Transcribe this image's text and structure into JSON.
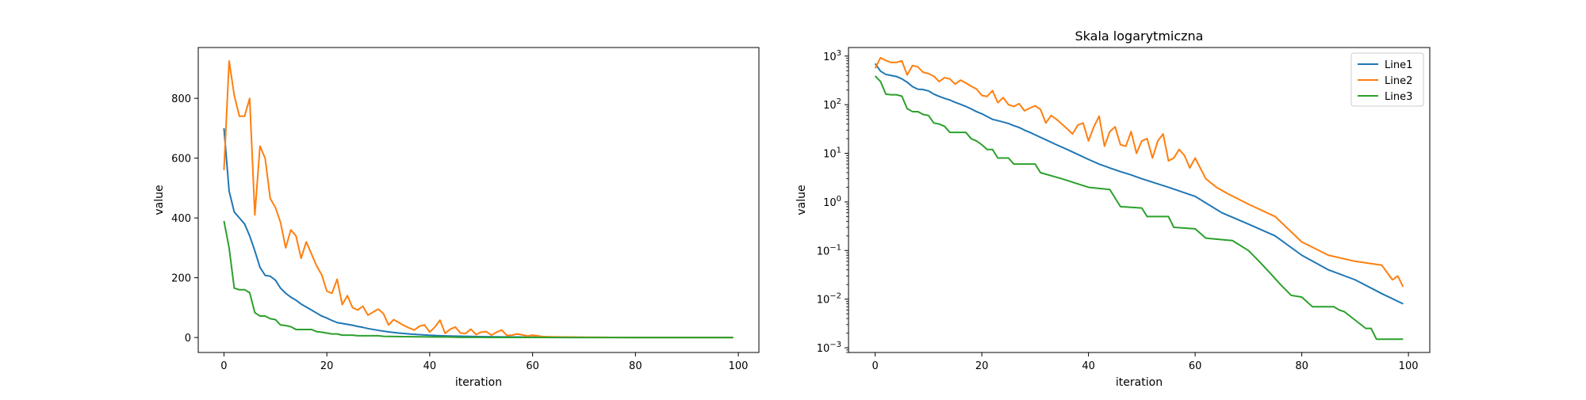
{
  "chart_data": [
    {
      "type": "line",
      "title": "",
      "xlabel": "iteration",
      "ylabel": "value",
      "yscale": "linear",
      "xlim": [
        -5,
        104
      ],
      "ylim": [
        -50,
        970
      ],
      "xticks": [
        0,
        20,
        40,
        60,
        80,
        100
      ],
      "yticks": [
        0,
        200,
        400,
        600,
        800
      ],
      "legend": null,
      "grid": false,
      "series": [
        {
          "color": "#1f77b4",
          "points": [
            [
              0,
              700
            ],
            [
              1,
              490
            ],
            [
              2,
              420
            ],
            [
              3,
              400
            ],
            [
              4,
              380
            ],
            [
              5,
              340
            ],
            [
              6,
              290
            ],
            [
              7,
              235
            ],
            [
              8,
              208
            ],
            [
              9,
              205
            ],
            [
              10,
              192
            ],
            [
              11,
              165
            ],
            [
              12,
              148
            ],
            [
              13,
              135
            ],
            [
              14,
              125
            ],
            [
              15,
              112
            ],
            [
              16,
              102
            ],
            [
              17,
              92
            ],
            [
              18,
              82
            ],
            [
              19,
              72
            ],
            [
              20,
              65
            ],
            [
              21,
              57
            ],
            [
              22,
              50
            ],
            [
              23,
              47
            ],
            [
              24,
              44
            ],
            [
              25,
              41
            ],
            [
              26,
              37
            ],
            [
              27,
              34
            ],
            [
              28,
              30
            ],
            [
              29,
              27
            ],
            [
              30,
              24
            ],
            [
              32,
              19
            ],
            [
              34,
              15
            ],
            [
              36,
              12
            ],
            [
              38,
              9.5
            ],
            [
              40,
              7.5
            ],
            [
              42,
              6
            ],
            [
              44,
              5
            ],
            [
              46,
              4.2
            ],
            [
              48,
              3.6
            ],
            [
              50,
              3
            ],
            [
              55,
              2
            ],
            [
              60,
              1.3
            ],
            [
              65,
              0.6
            ],
            [
              70,
              0.35
            ],
            [
              75,
              0.2
            ],
            [
              80,
              0.08
            ],
            [
              85,
              0.04
            ],
            [
              90,
              0.025
            ],
            [
              95,
              0.013
            ],
            [
              99,
              0.008
            ]
          ]
        },
        {
          "color": "#ff7f0e",
          "points": [
            [
              0,
              560
            ],
            [
              1,
              925
            ],
            [
              2,
              810
            ],
            [
              3,
              740
            ],
            [
              4,
              740
            ],
            [
              5,
              800
            ],
            [
              6,
              410
            ],
            [
              7,
              640
            ],
            [
              8,
              600
            ],
            [
              9,
              465
            ],
            [
              10,
              435
            ],
            [
              11,
              385
            ],
            [
              12,
              300
            ],
            [
              13,
              360
            ],
            [
              14,
              340
            ],
            [
              15,
              265
            ],
            [
              16,
              320
            ],
            [
              17,
              280
            ],
            [
              18,
              240
            ],
            [
              19,
              210
            ],
            [
              20,
              155
            ],
            [
              21,
              148
            ],
            [
              22,
              195
            ],
            [
              23,
              110
            ],
            [
              24,
              140
            ],
            [
              25,
              100
            ],
            [
              26,
              92
            ],
            [
              27,
              105
            ],
            [
              28,
              75
            ],
            [
              29,
              85
            ],
            [
              30,
              95
            ],
            [
              31,
              80
            ],
            [
              32,
              42
            ],
            [
              33,
              60
            ],
            [
              34,
              50
            ],
            [
              35,
              40
            ],
            [
              36,
              32
            ],
            [
              37,
              25
            ],
            [
              38,
              38
            ],
            [
              39,
              42
            ],
            [
              40,
              18
            ],
            [
              41,
              35
            ],
            [
              42,
              58
            ],
            [
              43,
              14
            ],
            [
              44,
              28
            ],
            [
              45,
              35
            ],
            [
              46,
              15
            ],
            [
              47,
              14
            ],
            [
              48,
              28
            ],
            [
              49,
              10
            ],
            [
              50,
              18
            ],
            [
              51,
              20
            ],
            [
              52,
              8
            ],
            [
              53,
              18
            ],
            [
              54,
              25
            ],
            [
              55,
              7
            ],
            [
              56,
              8
            ],
            [
              57,
              12
            ],
            [
              58,
              9
            ],
            [
              59,
              5
            ],
            [
              60,
              8
            ],
            [
              62,
              3
            ],
            [
              64,
              2
            ],
            [
              66,
              1.5
            ],
            [
              70,
              0.9
            ],
            [
              75,
              0.5
            ],
            [
              80,
              0.15
            ],
            [
              85,
              0.08
            ],
            [
              90,
              0.06
            ],
            [
              95,
              0.05
            ],
            [
              97,
              0.025
            ],
            [
              98,
              0.03
            ],
            [
              99,
              0.018
            ]
          ]
        },
        {
          "color": "#2ca02c",
          "points": [
            [
              0,
              390
            ],
            [
              1,
              300
            ],
            [
              2,
              165
            ],
            [
              3,
              160
            ],
            [
              4,
              160
            ],
            [
              5,
              150
            ],
            [
              6,
              83
            ],
            [
              7,
              72
            ],
            [
              8,
              72
            ],
            [
              9,
              63
            ],
            [
              10,
              60
            ],
            [
              11,
              42
            ],
            [
              12,
              40
            ],
            [
              13,
              36
            ],
            [
              14,
              27
            ],
            [
              15,
              27
            ],
            [
              16,
              27
            ],
            [
              17,
              27
            ],
            [
              18,
              20
            ],
            [
              19,
              18
            ],
            [
              20,
              15
            ],
            [
              21,
              12
            ],
            [
              22,
              12
            ],
            [
              23,
              8
            ],
            [
              24,
              8
            ],
            [
              25,
              8
            ],
            [
              26,
              6
            ],
            [
              30,
              6
            ],
            [
              31,
              4
            ],
            [
              35,
              3
            ],
            [
              40,
              2
            ],
            [
              44,
              1.8
            ],
            [
              46,
              0.8
            ],
            [
              50,
              0.75
            ],
            [
              51,
              0.5
            ],
            [
              55,
              0.5
            ],
            [
              56,
              0.3
            ],
            [
              60,
              0.28
            ],
            [
              62,
              0.18
            ],
            [
              67,
              0.16
            ],
            [
              70,
              0.1
            ],
            [
              72,
              0.06
            ],
            [
              74,
              0.035
            ],
            [
              76,
              0.02
            ],
            [
              78,
              0.012
            ],
            [
              80,
              0.011
            ],
            [
              82,
              0.007
            ],
            [
              86,
              0.007
            ],
            [
              87,
              0.006
            ],
            [
              88,
              0.0055
            ],
            [
              92,
              0.0025
            ],
            [
              93,
              0.0025
            ],
            [
              94,
              0.0015
            ],
            [
              99,
              0.0015
            ]
          ]
        }
      ]
    },
    {
      "type": "line",
      "title": "Skala logarytmiczna",
      "xlabel": "iteration",
      "ylabel": "value",
      "yscale": "log",
      "xlim": [
        -5,
        104
      ],
      "ylim": [
        0.0008,
        1500
      ],
      "xticks": [
        0,
        20,
        40,
        60,
        80,
        100
      ],
      "yticks": [
        0.001,
        0.01,
        0.1,
        1,
        10,
        100,
        1000
      ],
      "yticklabels": [
        {
          "base": "10",
          "exp": "−3"
        },
        {
          "base": "10",
          "exp": "−2"
        },
        {
          "base": "10",
          "exp": "−1"
        },
        {
          "base": "10",
          "exp": "0"
        },
        {
          "base": "10",
          "exp": "1"
        },
        {
          "base": "10",
          "exp": "2"
        },
        {
          "base": "10",
          "exp": "3"
        }
      ],
      "legend": "top-right",
      "grid": false,
      "series_names": [
        "Line1",
        "Line2",
        "Line3"
      ],
      "series_ref": "same as chart 0 series"
    }
  ]
}
